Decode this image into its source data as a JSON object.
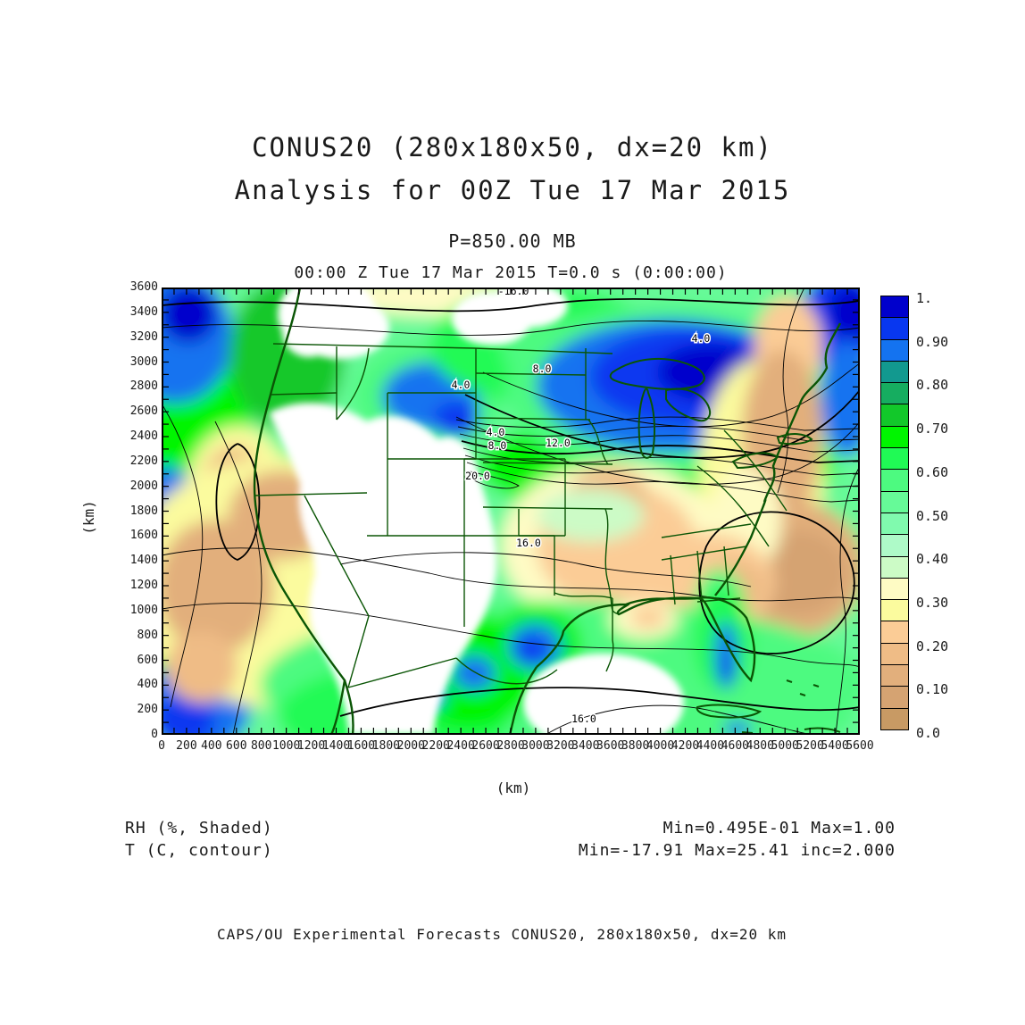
{
  "chart_data": {
    "type": "heatmap",
    "title": "CONUS20 (280x180x50, dx=20 km)",
    "subtitle": "Analysis for 00Z Tue 17 Mar 2015",
    "level": "P=850.00 MB",
    "valid_time": "00:00 Z Tue 17 Mar 2015   T=0.0 s (0:00:00)",
    "xlabel": "(km)",
    "ylabel": "(km)",
    "xlim": [
      0,
      5600
    ],
    "ylim": [
      0,
      3600
    ],
    "x_tick_label_step": 200,
    "y_tick_label_step": 200,
    "tick_minor_step": 100,
    "grid": false,
    "shaded_field": {
      "name": "RH",
      "units": "%",
      "style": "Shaded",
      "min": "0.495E-01",
      "max": "1.00"
    },
    "contour_field": {
      "name": "T",
      "units": "C",
      "style": "contour",
      "min": -17.91,
      "max": 25.41,
      "inc": 2.0
    },
    "colorbar": {
      "min": 0.0,
      "max": 1.0,
      "band_step": 0.05,
      "tick_labels": [
        "1.",
        "0.90",
        "0.80",
        "0.70",
        "0.60",
        "0.50",
        "0.40",
        "0.30",
        "0.20",
        "0.10",
        "0.0"
      ],
      "colors_low_to_high": [
        "#C89A64",
        "#D5A372",
        "#E2AF7C",
        "#EFBC86",
        "#FBCC96",
        "#FBFB9E",
        "#FEFBC4",
        "#CCFBC6",
        "#AEFAC8",
        "#80FAAE",
        "#66FA98",
        "#4DFA80",
        "#20FA55",
        "#00F500",
        "#12C82A",
        "#16AD60",
        "#12998F",
        "#1473F0",
        "#0837F0",
        "#0000CC"
      ]
    },
    "contour_labels": [
      {
        "text": "-16.0",
        "x_km": 2822,
        "y_km": 3542
      },
      {
        "text": "4.0",
        "x_km": 2399,
        "y_km": 2788
      },
      {
        "text": "8.0",
        "x_km": 3051,
        "y_km": 2917
      },
      {
        "text": "4.0",
        "x_km": 4325,
        "y_km": 3162
      },
      {
        "text": "4.0",
        "x_km": 2678,
        "y_km": 2407
      },
      {
        "text": "8.0",
        "x_km": 2692,
        "y_km": 2299
      },
      {
        "text": "12.0",
        "x_km": 3179,
        "y_km": 2321
      },
      {
        "text": "20.0",
        "x_km": 2535,
        "y_km": 2055
      },
      {
        "text": "16.0",
        "x_km": 2943,
        "y_km": 1516
      },
      {
        "text": "16.0",
        "x_km": 3387,
        "y_km": 101
      }
    ],
    "map_colors": {
      "state_border": "#0A5505",
      "contour_line": "#000000",
      "no_data": "#FFFFFF"
    }
  },
  "header": {
    "title_line1": "CONUS20 (280x180x50, dx=20 km)",
    "title_line2": "Analysis for 00Z Tue 17 Mar 2015",
    "level_label": "P=850.00 MB",
    "time_label": "00:00 Z Tue 17 Mar 2015   T=0.0 s (0:00:00)"
  },
  "legend": {
    "shaded_label": "RH (%, Shaded)",
    "contour_label": "T (C, contour)"
  },
  "stats": {
    "shaded_stats": "Min=0.495E-01 Max=1.00",
    "contour_stats": "Min=-17.91 Max=25.41 inc=2.000"
  },
  "footer": {
    "credit": "CAPS/OU Experimental Forecasts  CONUS20, 280x180x50, dx=20 km"
  }
}
